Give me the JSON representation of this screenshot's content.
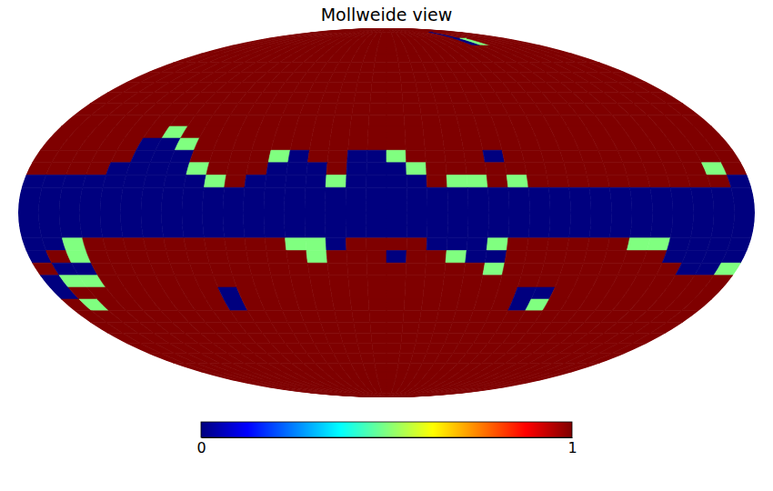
{
  "chart_data": {
    "type": "mollweide",
    "title": "Mollweide view",
    "color": "jet",
    "lon_bins": [
      180,
      170,
      160,
      150,
      140,
      130,
      120,
      110,
      100,
      90,
      80,
      70,
      60,
      50,
      40,
      30,
      20,
      10,
      0,
      -10,
      -20,
      -30,
      -40,
      -50,
      -60,
      -70,
      -80,
      -90,
      -100,
      -110,
      -120,
      -130,
      -140,
      -150,
      -160,
      -170,
      -180
    ],
    "lat_bins": [
      90,
      85,
      80,
      75,
      70,
      65,
      60,
      55,
      50,
      45,
      40,
      35,
      30,
      25,
      20,
      15,
      10,
      5,
      0,
      -5,
      -10,
      -15,
      -20,
      -25,
      -30,
      -35,
      -40,
      -45,
      -50,
      -55,
      -60,
      -65,
      -70,
      -75,
      -80,
      -85,
      -90
    ],
    "cells": [
      [
        1,
        1,
        1,
        1,
        1,
        1,
        1,
        1,
        1,
        1,
        1,
        1,
        1,
        1,
        1,
        1,
        1,
        1,
        1,
        1,
        1,
        1,
        1,
        1,
        1,
        1,
        1,
        1,
        1,
        1,
        1,
        1,
        1,
        1,
        1,
        1
      ],
      [
        1,
        1,
        1,
        1,
        1,
        1,
        1,
        1,
        1,
        1,
        1,
        1,
        1,
        1,
        1,
        1,
        1,
        1,
        1,
        1,
        1,
        1,
        1,
        1,
        1,
        1,
        1,
        1,
        0,
        1,
        1,
        1,
        1,
        1,
        1,
        1
      ],
      [
        1,
        1,
        1,
        1,
        1,
        1,
        1,
        1,
        1,
        1,
        1,
        1,
        1,
        1,
        1,
        1,
        1,
        1,
        1,
        1,
        1,
        1,
        1,
        1,
        1,
        1,
        1,
        1,
        0,
        0.5,
        1,
        1,
        1,
        1,
        1,
        1
      ],
      [
        1,
        1,
        1,
        1,
        1,
        1,
        1,
        1,
        1,
        1,
        1,
        1,
        1,
        1,
        1,
        1,
        1,
        1,
        1,
        1,
        1,
        1,
        1,
        1,
        1,
        1,
        1,
        1,
        1,
        1,
        1,
        1,
        1,
        1,
        1,
        1
      ],
      [
        1,
        1,
        1,
        1,
        1,
        1,
        1,
        1,
        1,
        1,
        1,
        1,
        1,
        1,
        1,
        1,
        1,
        1,
        1,
        1,
        1,
        1,
        1,
        1,
        1,
        1,
        1,
        1,
        1,
        1,
        1,
        1,
        1,
        1,
        1,
        1
      ],
      [
        1,
        1,
        1,
        1,
        1,
        1,
        1,
        1,
        1,
        1,
        1,
        1,
        1,
        1,
        1,
        1,
        1,
        1,
        1,
        1,
        1,
        1,
        1,
        1,
        1,
        1,
        1,
        1,
        1,
        1,
        1,
        1,
        1,
        1,
        1,
        1
      ],
      [
        1,
        1,
        1,
        1,
        1,
        1,
        1,
        1,
        1,
        1,
        1,
        1,
        1,
        1,
        1,
        1,
        1,
        1,
        1,
        1,
        1,
        1,
        1,
        1,
        1,
        1,
        1,
        1,
        1,
        1,
        1,
        1,
        1,
        1,
        1,
        1
      ],
      [
        1,
        1,
        1,
        1,
        1,
        1,
        1,
        1,
        1,
        1,
        1,
        1,
        1,
        1,
        1,
        1,
        1,
        1,
        1,
        1,
        1,
        1,
        1,
        1,
        1,
        1,
        1,
        1,
        1,
        1,
        1,
        1,
        1,
        1,
        1,
        1
      ],
      [
        1,
        1,
        1,
        1,
        1,
        1,
        1,
        1,
        1,
        1,
        1,
        1,
        1,
        1,
        1,
        1,
        1,
        1,
        1,
        1,
        1,
        1,
        1,
        1,
        1,
        1,
        1,
        1,
        1,
        1,
        1,
        1,
        1,
        1,
        1,
        1
      ],
      [
        1,
        1,
        1,
        1,
        1,
        1,
        1,
        1,
        1,
        1,
        1,
        1,
        1,
        1,
        1,
        1,
        1,
        1,
        1,
        1,
        1,
        1,
        1,
        1,
        1,
        1,
        1,
        1,
        1,
        1,
        1,
        1,
        1,
        1,
        1,
        1
      ],
      [
        1,
        1,
        1,
        1,
        1,
        1,
        1,
        1,
        1,
        1,
        1,
        1,
        1,
        1,
        1,
        1,
        1,
        1,
        1,
        1,
        1,
        1,
        1,
        1,
        1,
        1,
        1,
        1,
        1,
        1,
        1,
        1,
        1,
        1,
        1,
        1
      ],
      [
        1,
        1,
        1,
        1,
        1,
        1,
        0.5,
        1,
        1,
        1,
        1,
        1,
        1,
        1,
        1,
        1,
        1,
        1,
        1,
        1,
        1,
        1,
        1,
        1,
        1,
        1,
        1,
        1,
        1,
        1,
        1,
        1,
        1,
        1,
        1,
        1
      ],
      [
        1,
        1,
        1,
        1,
        1,
        0,
        0,
        0.5,
        1,
        1,
        1,
        1,
        1,
        1,
        1,
        1,
        1,
        1,
        1,
        1,
        1,
        1,
        1,
        1,
        1,
        1,
        1,
        1,
        1,
        1,
        1,
        1,
        1,
        1,
        1,
        1
      ],
      [
        1,
        1,
        1,
        1,
        1,
        0,
        0,
        0,
        1,
        1,
        1,
        1,
        0.5,
        0,
        1,
        1,
        0,
        0,
        0.5,
        1,
        1,
        1,
        1,
        0,
        1,
        1,
        1,
        1,
        1,
        1,
        1,
        1,
        1,
        1,
        1,
        1
      ],
      [
        1,
        1,
        1,
        1,
        0,
        0,
        0,
        0,
        0.5,
        1,
        1,
        1,
        0,
        0,
        0,
        1,
        0,
        0,
        0,
        0.5,
        1,
        1,
        1,
        1,
        1,
        1,
        1,
        1,
        1,
        1,
        1,
        1,
        1,
        1,
        0.5,
        1
      ],
      [
        0,
        0,
        0,
        0,
        0,
        0,
        0,
        0,
        0,
        0.5,
        1,
        0,
        0,
        0,
        0,
        0.5,
        0,
        0,
        0,
        0,
        1,
        0.5,
        0.5,
        1,
        0.5,
        1,
        1,
        1,
        1,
        1,
        1,
        1,
        1,
        1,
        1,
        0
      ],
      [
        0,
        0,
        0,
        0,
        0,
        0,
        0,
        0,
        0,
        0,
        0,
        0,
        0,
        0,
        0,
        0,
        0,
        0,
        0,
        0,
        0,
        0,
        0,
        0,
        0,
        0,
        0,
        0,
        0,
        0,
        0,
        0,
        0,
        0,
        0,
        0
      ],
      [
        0,
        0,
        0,
        0,
        0,
        0,
        0,
        0,
        0,
        0,
        0,
        0,
        0,
        0,
        0,
        0,
        0,
        0,
        0,
        0,
        0,
        0,
        0,
        0,
        0,
        0,
        0,
        0,
        0,
        0,
        0,
        0,
        0,
        0,
        0,
        0
      ],
      [
        0,
        0,
        0,
        0,
        0,
        0,
        0,
        0,
        0,
        0,
        0,
        0,
        0,
        0,
        0,
        0,
        0,
        0,
        0,
        0,
        0,
        0,
        0,
        0,
        0,
        0,
        0,
        0,
        0,
        0,
        0,
        0,
        0,
        0,
        0,
        0
      ],
      [
        0,
        0,
        0,
        0,
        0,
        0,
        0,
        0,
        0,
        0,
        0,
        0,
        0,
        0,
        0,
        0,
        0,
        0,
        0,
        0,
        0,
        0,
        0,
        0,
        0,
        0,
        0,
        0,
        0,
        0,
        0,
        0,
        0,
        0,
        0,
        0
      ],
      [
        0,
        0,
        0.5,
        1,
        1,
        1,
        1,
        1,
        1,
        1,
        1,
        1,
        1,
        0.5,
        0.5,
        0,
        1,
        1,
        1,
        1,
        0,
        0,
        0,
        0.5,
        1,
        1,
        1,
        1,
        1,
        1,
        0.5,
        0.5,
        0,
        0,
        0,
        0
      ],
      [
        0,
        1,
        0.5,
        1,
        1,
        1,
        1,
        1,
        1,
        1,
        1,
        1,
        1,
        1,
        0.5,
        1,
        1,
        1,
        0,
        1,
        1,
        0.5,
        0,
        0,
        1,
        1,
        1,
        1,
        1,
        1,
        1,
        1,
        0,
        0,
        0,
        0
      ],
      [
        1,
        0,
        0,
        1,
        1,
        1,
        1,
        1,
        1,
        1,
        1,
        1,
        1,
        1,
        1,
        1,
        1,
        1,
        1,
        1,
        1,
        1,
        1,
        0.5,
        1,
        1,
        1,
        1,
        1,
        1,
        1,
        1,
        1,
        0,
        0,
        0.5
      ],
      [
        0,
        0.5,
        0.5,
        1,
        1,
        1,
        1,
        1,
        1,
        1,
        1,
        1,
        1,
        1,
        1,
        1,
        1,
        1,
        1,
        1,
        1,
        1,
        1,
        1,
        1,
        1,
        1,
        1,
        1,
        1,
        1,
        1,
        1,
        1,
        1,
        1
      ],
      [
        0,
        1,
        1,
        1,
        1,
        1,
        1,
        1,
        1,
        0,
        1,
        1,
        1,
        1,
        1,
        1,
        1,
        1,
        1,
        1,
        1,
        1,
        1,
        1,
        1,
        0,
        0,
        1,
        1,
        1,
        1,
        1,
        1,
        1,
        1,
        1
      ],
      [
        1,
        0.5,
        1,
        1,
        1,
        1,
        1,
        1,
        1,
        0,
        1,
        1,
        1,
        1,
        1,
        1,
        1,
        1,
        1,
        1,
        1,
        1,
        1,
        1,
        1,
        0,
        0.5,
        1,
        1,
        1,
        1,
        1,
        1,
        1,
        1,
        1
      ],
      [
        1,
        1,
        1,
        1,
        1,
        1,
        1,
        1,
        1,
        1,
        1,
        1,
        1,
        1,
        1,
        1,
        1,
        1,
        1,
        1,
        1,
        1,
        1,
        1,
        1,
        1,
        1,
        1,
        1,
        1,
        1,
        1,
        1,
        1,
        1,
        1
      ],
      [
        1,
        1,
        1,
        1,
        1,
        1,
        1,
        1,
        1,
        1,
        1,
        1,
        1,
        1,
        1,
        1,
        1,
        1,
        1,
        1,
        1,
        1,
        1,
        1,
        1,
        1,
        1,
        1,
        1,
        1,
        1,
        1,
        1,
        1,
        1,
        1
      ],
      [
        1,
        1,
        1,
        1,
        1,
        1,
        1,
        1,
        1,
        1,
        1,
        1,
        1,
        1,
        1,
        1,
        1,
        1,
        1,
        1,
        1,
        1,
        1,
        1,
        1,
        1,
        1,
        1,
        1,
        1,
        1,
        1,
        1,
        1,
        1,
        1
      ],
      [
        1,
        1,
        1,
        1,
        1,
        1,
        1,
        1,
        1,
        1,
        1,
        1,
        1,
        1,
        1,
        1,
        1,
        1,
        1,
        1,
        1,
        1,
        1,
        1,
        1,
        1,
        1,
        1,
        1,
        1,
        1,
        1,
        1,
        1,
        1,
        1
      ],
      [
        1,
        1,
        1,
        1,
        1,
        1,
        1,
        1,
        1,
        1,
        1,
        1,
        1,
        1,
        1,
        1,
        1,
        1,
        1,
        1,
        1,
        1,
        1,
        1,
        1,
        1,
        1,
        1,
        1,
        1,
        1,
        1,
        1,
        1,
        1,
        1
      ],
      [
        1,
        1,
        1,
        1,
        1,
        1,
        1,
        1,
        1,
        1,
        1,
        1,
        1,
        1,
        1,
        1,
        1,
        1,
        1,
        1,
        1,
        1,
        1,
        1,
        1,
        1,
        1,
        1,
        1,
        1,
        1,
        1,
        1,
        1,
        1,
        1
      ],
      [
        1,
        1,
        1,
        1,
        1,
        1,
        1,
        1,
        1,
        1,
        1,
        1,
        1,
        1,
        1,
        1,
        1,
        1,
        1,
        1,
        1,
        1,
        1,
        1,
        1,
        1,
        1,
        1,
        1,
        1,
        1,
        1,
        1,
        1,
        1,
        1
      ],
      [
        1,
        1,
        1,
        1,
        1,
        1,
        1,
        1,
        1,
        1,
        1,
        1,
        1,
        1,
        1,
        1,
        1,
        1,
        1,
        1,
        1,
        1,
        1,
        1,
        1,
        1,
        1,
        1,
        1,
        1,
        1,
        1,
        1,
        1,
        1,
        1
      ],
      [
        1,
        1,
        1,
        1,
        1,
        1,
        1,
        1,
        1,
        1,
        1,
        1,
        1,
        1,
        1,
        1,
        1,
        1,
        1,
        1,
        1,
        1,
        1,
        1,
        1,
        1,
        1,
        1,
        1,
        1,
        1,
        1,
        1,
        1,
        1,
        1
      ],
      [
        1,
        1,
        1,
        1,
        1,
        1,
        1,
        1,
        1,
        1,
        1,
        1,
        1,
        1,
        1,
        1,
        1,
        1,
        1,
        1,
        1,
        1,
        1,
        1,
        1,
        1,
        1,
        1,
        1,
        1,
        1,
        1,
        1,
        1,
        1,
        1
      ]
    ],
    "colorbar": {
      "range": [
        0,
        1
      ],
      "ticks": [
        0,
        1
      ]
    }
  }
}
